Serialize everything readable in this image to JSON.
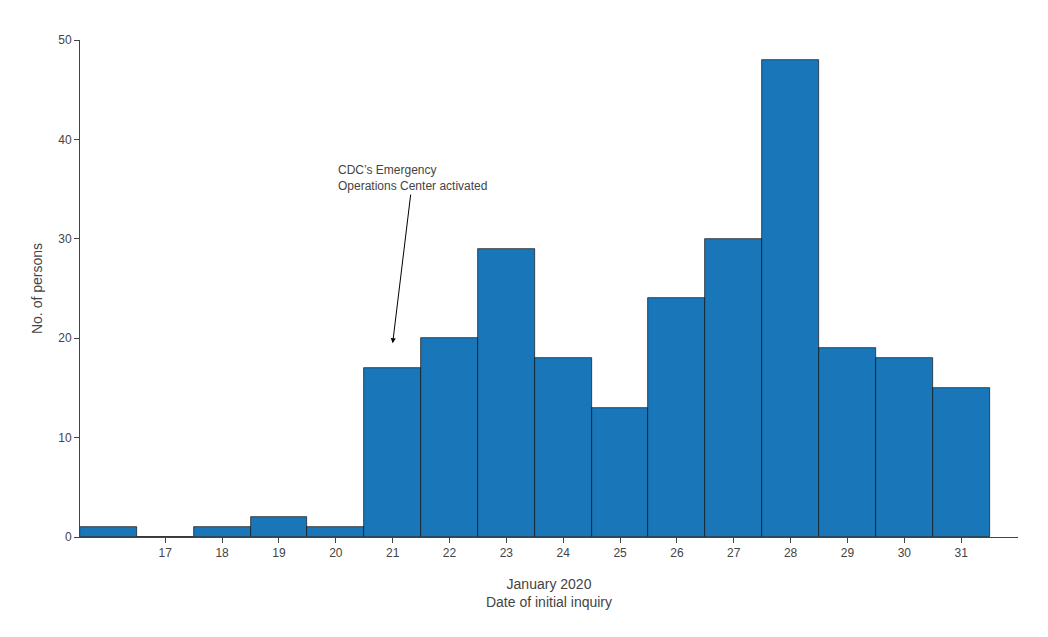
{
  "chart_data": {
    "type": "bar",
    "x": [
      16,
      17,
      18,
      19,
      20,
      21,
      22,
      23,
      24,
      25,
      26,
      27,
      28,
      29,
      30,
      31
    ],
    "values": [
      1,
      0,
      1,
      2,
      1,
      17,
      20,
      29,
      18,
      13,
      24,
      30,
      48,
      19,
      18,
      15
    ],
    "color": "#1976b8",
    "xlim": [
      15.5,
      32.0
    ],
    "xticks": [
      17,
      18,
      19,
      20,
      21,
      22,
      23,
      24,
      25,
      26,
      27,
      28,
      29,
      30,
      31
    ],
    "ylim": [
      0,
      50
    ],
    "yticks": [
      0,
      10,
      20,
      30,
      40,
      50
    ],
    "ylabel": "No. of persons",
    "xlabel": "January 2020\nDate of initial inquiry",
    "annotations": [
      {
        "text": "CDC’s Emergency\nOperations Center activated",
        "x": 21.0,
        "y": 19.5
      }
    ],
    "grid": false
  }
}
